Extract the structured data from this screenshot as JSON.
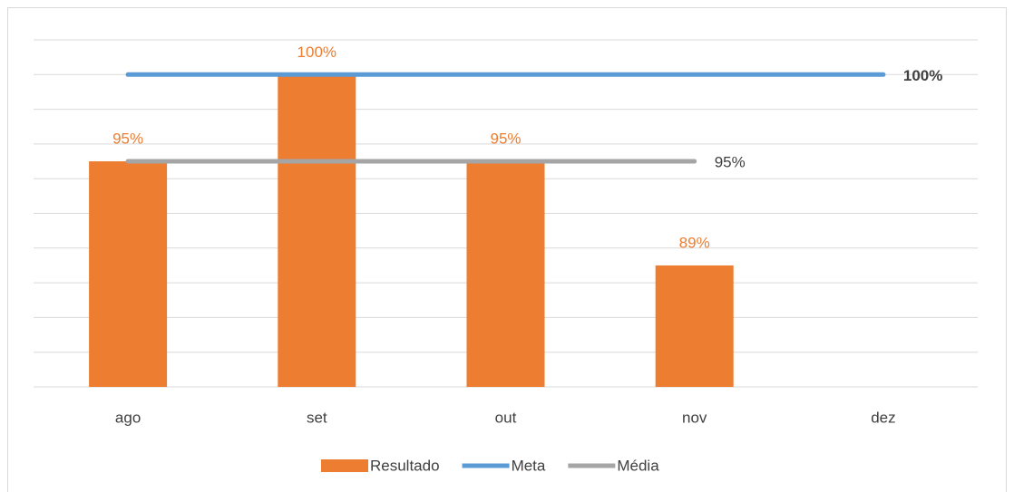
{
  "chart_data": {
    "type": "bar",
    "categories": [
      "ago",
      "set",
      "out",
      "nov",
      "dez"
    ],
    "series": [
      {
        "name": "Resultado",
        "type": "bar",
        "color": "#ed7d31",
        "values": [
          95,
          100,
          95,
          89,
          null
        ],
        "value_labels": [
          "95%",
          "100%",
          "95%",
          "89%",
          null
        ]
      },
      {
        "name": "Meta",
        "type": "line",
        "color": "#5b9bd5",
        "values": [
          100,
          100,
          100,
          100,
          100
        ],
        "value_labels": [
          null,
          null,
          null,
          null,
          "100%"
        ]
      },
      {
        "name": "Média",
        "type": "line",
        "color": "#a5a5a5",
        "values": [
          95,
          95,
          95,
          95,
          null
        ],
        "value_labels": [
          null,
          null,
          null,
          "95%",
          null
        ]
      }
    ],
    "ylim": [
      82,
      102
    ],
    "yticks": [
      82,
      84,
      86,
      88,
      90,
      92,
      94,
      96,
      98,
      100,
      102
    ],
    "grid": true,
    "legend": "bottom"
  }
}
